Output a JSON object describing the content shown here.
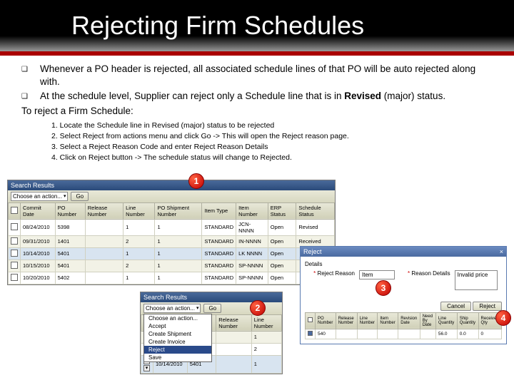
{
  "title": "Rejecting Firm Schedules",
  "bullets": [
    "Whenever a PO header is rejected, all associated schedule lines of that PO will be auto rejected along with.",
    "At the schedule level, Supplier can reject only a Schedule line that is in <b>Revised</b> (major)  status."
  ],
  "to_line": "To  reject a Firm Schedule:",
  "steps": [
    "1. Locate the  Schedule line in Revised (major) status to be rejected",
    "2. Select Reject from actions menu and click Go -> This will open the Reject reason page.",
    "3. Select a Reject Reason Code and enter Reject Reason Details",
    "4. Click on Reject button -> The schedule status  will change to  Rejected."
  ],
  "callouts": {
    "c1": "1",
    "c2": "2",
    "c3": "3",
    "c4": "4"
  },
  "panel1": {
    "title": "Search Results",
    "action_placeholder": "Choose an action...",
    "go_label": "Go",
    "columns": [
      "",
      "Commit Date",
      "PO Number",
      "Release Number",
      "Line Number",
      "PO Shipment Number",
      "Item Type",
      "Item Number",
      "ERP Status",
      "Schedule Status"
    ],
    "rows": [
      [
        "",
        "08/24/2010",
        "5398",
        "",
        "1",
        "1",
        "STANDARD",
        "JCN-NNNN",
        "Open",
        "Revised"
      ],
      [
        "",
        "09/31/2010",
        "1401",
        "",
        "2",
        "1",
        "STANDARD",
        "IN-NNNN",
        "Open",
        "Received"
      ],
      [
        "",
        "10/14/2010",
        "5401",
        "",
        "1",
        "1",
        "STANDARD",
        "LK NNNN",
        "Open",
        ""
      ],
      [
        "",
        "10/15/2010",
        "5401",
        "",
        "2",
        "1",
        "STANDARD",
        "SP-NNNN",
        "Open",
        ""
      ],
      [
        "",
        "10/20/2010",
        "5402",
        "",
        "1",
        "1",
        "STANDARD",
        "SP-NNNN",
        "Open",
        ""
      ]
    ]
  },
  "panel2": {
    "title": "Search Results",
    "action_placeholder": "Choose an action...",
    "go_label": "Go",
    "columns": [
      "",
      "Commit Date",
      "PO Number",
      "Release Number",
      "Line Number"
    ],
    "rows": [
      [
        "",
        "",
        "5398",
        "",
        "1"
      ],
      [
        "",
        "",
        "5398",
        "",
        "2"
      ],
      [
        "",
        "10/14/2010",
        "5401",
        "",
        "1"
      ]
    ],
    "dropdown": [
      "Choose an action...",
      "Accept",
      "Create Shipment",
      "Create Invoice",
      "Reject",
      "Save"
    ]
  },
  "reject": {
    "title": "Reject",
    "reason_label": "Reject Reason",
    "reason_value": "Item",
    "details_label": "Reason Details",
    "details_value": "Invalid price",
    "required": "*",
    "cancel": "Cancel",
    "reject_btn": "Reject",
    "table_cols": [
      "",
      "PO Number",
      "Release Number",
      "Line Number",
      "Item Number",
      "Revision Date",
      "Need By Date",
      "Line Quantity",
      "Ship Quantity",
      "Received Qty"
    ],
    "table_row": [
      "",
      "540",
      "",
      "",
      "",
      "",
      "",
      "56.0",
      "0.0",
      "0"
    ]
  }
}
